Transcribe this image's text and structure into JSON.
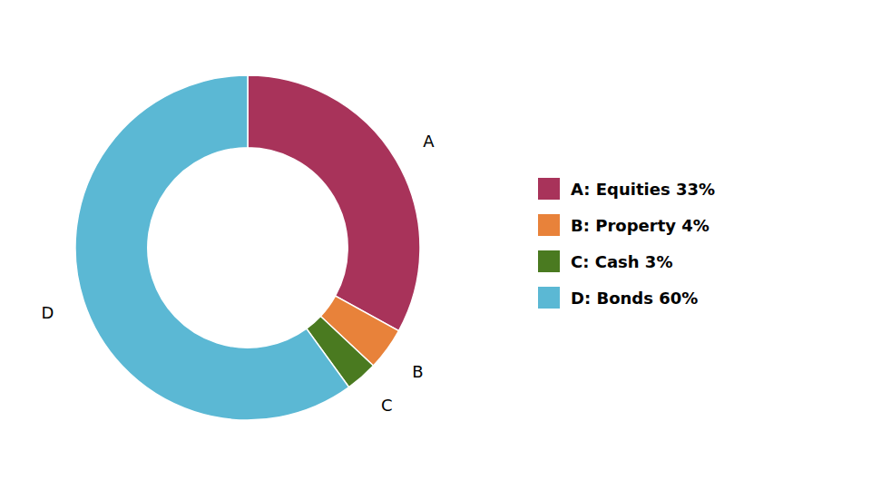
{
  "chart_data": {
    "type": "pie",
    "categories": [
      "A",
      "B",
      "C",
      "D"
    ],
    "values": [
      33,
      4,
      3,
      60
    ],
    "colors": [
      "#a8335a",
      "#e8823a",
      "#4a7a20",
      "#5bb8d4"
    ],
    "legend_labels": [
      "A: Equities 33%",
      "B: Property 4%",
      "C: Cash 3%",
      "D: Bonds 60%"
    ],
    "legend": "right"
  }
}
